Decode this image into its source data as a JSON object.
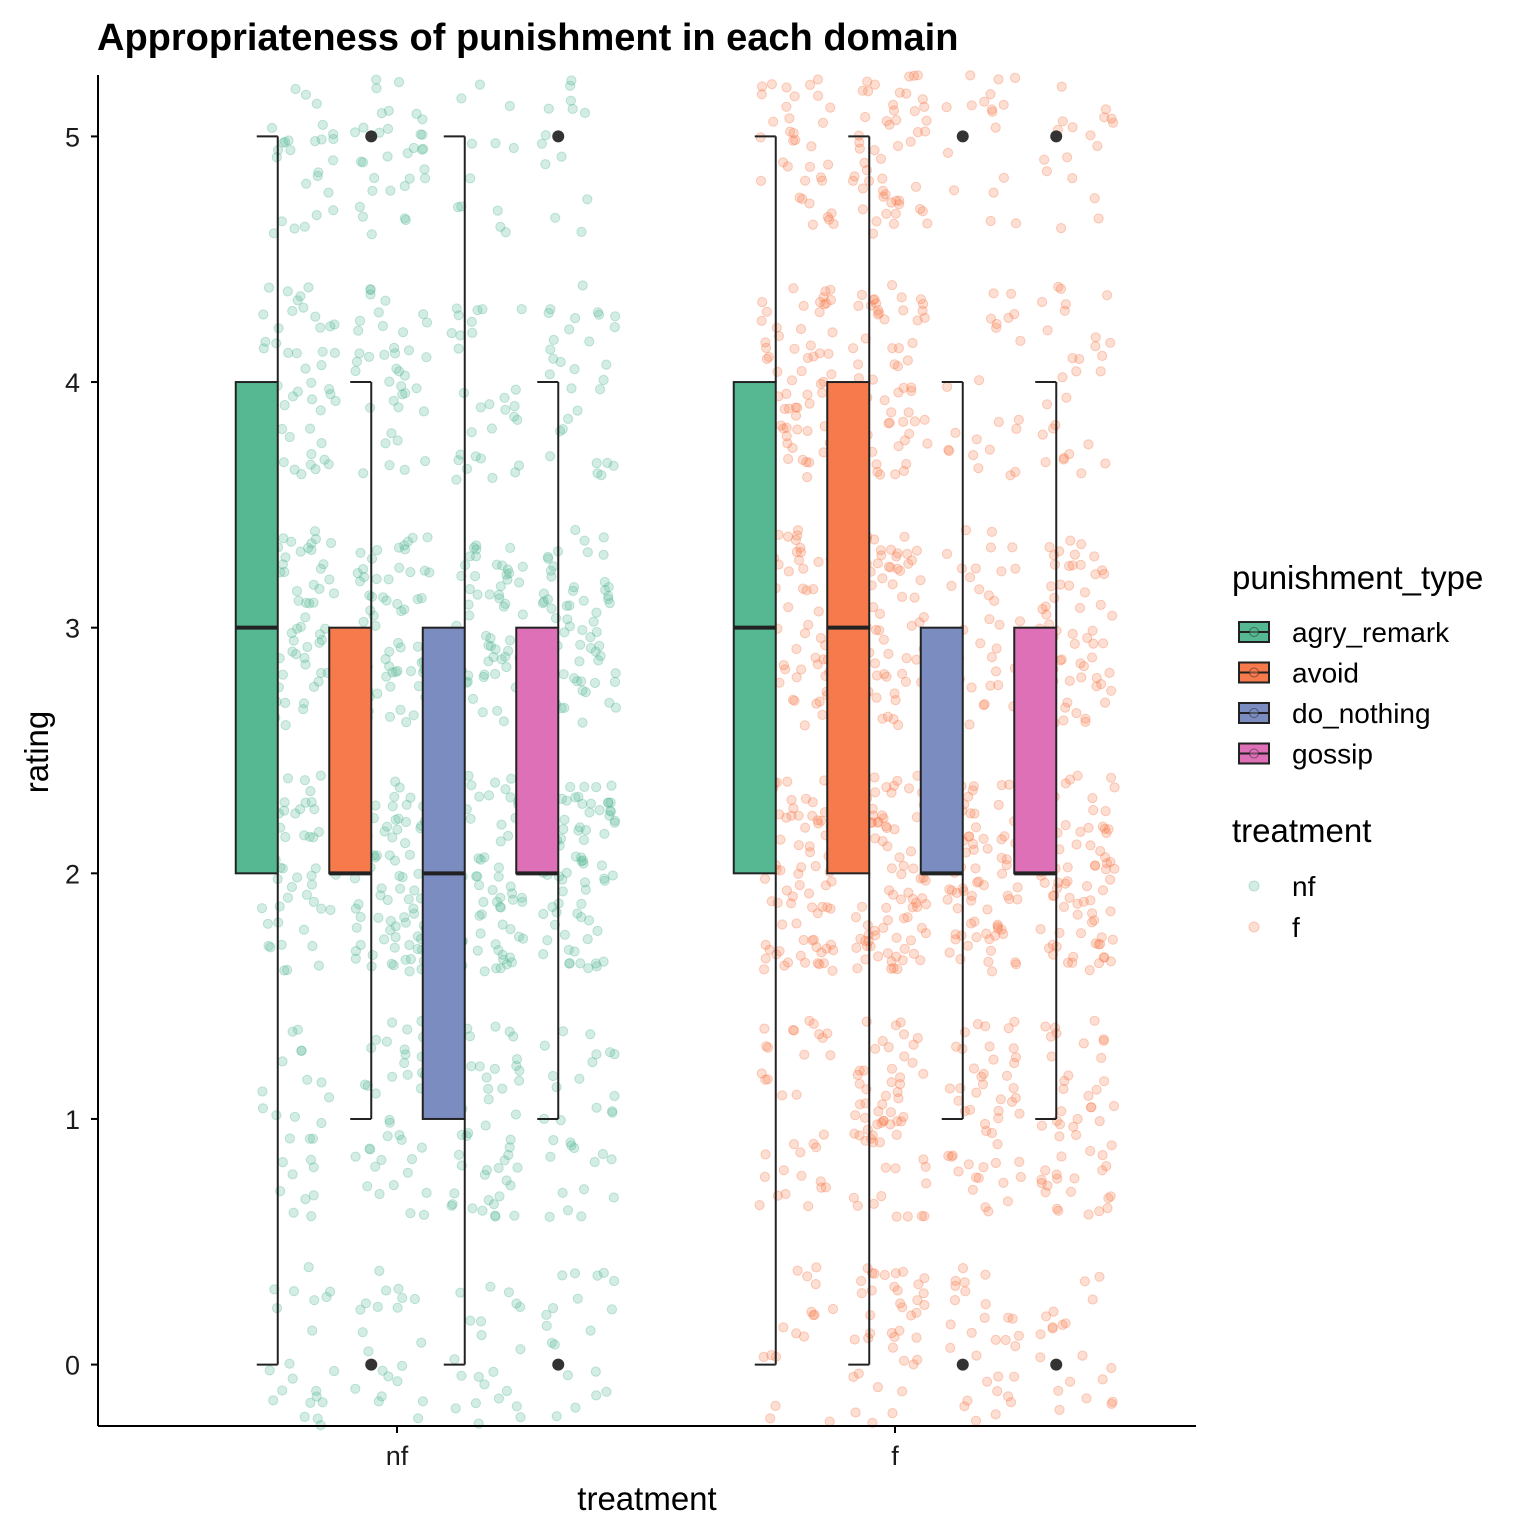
{
  "chart_data": {
    "type": "boxplot",
    "title": "Appropriateness of punishment in each domain",
    "xlabel": "treatment",
    "ylabel": "rating",
    "categories": [
      "nf",
      "f"
    ],
    "ylim": [
      -0.25,
      5.25
    ],
    "yticks": [
      0,
      1,
      2,
      3,
      4,
      5
    ],
    "grid": false,
    "legend_position": "right",
    "fill_legend": {
      "title": "punishment_type",
      "entries": [
        {
          "name": "agry_remark",
          "color": "#55b893"
        },
        {
          "name": "avoid",
          "color": "#f77a4c"
        },
        {
          "name": "do_nothing",
          "color": "#7a8cc0"
        },
        {
          "name": "gossip",
          "color": "#dd70b6"
        }
      ]
    },
    "color_legend": {
      "title": "treatment",
      "entries": [
        {
          "name": "nf",
          "color": "#55b893"
        },
        {
          "name": "f",
          "color": "#f77a4c"
        }
      ]
    },
    "boxes": [
      {
        "treatment": "nf",
        "punishment_type": "agry_remark",
        "whisker_low": 0,
        "q1": 2,
        "median": 3,
        "q3": 4,
        "whisker_high": 5,
        "outliers": []
      },
      {
        "treatment": "nf",
        "punishment_type": "avoid",
        "whisker_low": 1,
        "q1": 2,
        "median": 2,
        "q3": 3,
        "whisker_high": 4,
        "outliers": [
          0,
          5
        ]
      },
      {
        "treatment": "nf",
        "punishment_type": "do_nothing",
        "whisker_low": 0,
        "q1": 1,
        "median": 2,
        "q3": 3,
        "whisker_high": 5,
        "outliers": []
      },
      {
        "treatment": "nf",
        "punishment_type": "gossip",
        "whisker_low": 1,
        "q1": 2,
        "median": 2,
        "q3": 3,
        "whisker_high": 4,
        "outliers": [
          0,
          5
        ]
      },
      {
        "treatment": "f",
        "punishment_type": "agry_remark",
        "whisker_low": 0,
        "q1": 2,
        "median": 3,
        "q3": 4,
        "whisker_high": 5,
        "outliers": []
      },
      {
        "treatment": "f",
        "punishment_type": "avoid",
        "whisker_low": 0,
        "q1": 2,
        "median": 3,
        "q3": 4,
        "whisker_high": 5,
        "outliers": []
      },
      {
        "treatment": "f",
        "punishment_type": "do_nothing",
        "whisker_low": 1,
        "q1": 2,
        "median": 2,
        "q3": 3,
        "whisker_high": 4,
        "outliers": [
          0,
          5
        ]
      },
      {
        "treatment": "f",
        "punishment_type": "gossip",
        "whisker_low": 1,
        "q1": 2,
        "median": 2,
        "q3": 3,
        "whisker_high": 4,
        "outliers": [
          0,
          5
        ]
      }
    ],
    "jitter_points": {
      "description_values": [
        0,
        1,
        2,
        3,
        4,
        5
      ],
      "alpha": 0.25
    }
  }
}
